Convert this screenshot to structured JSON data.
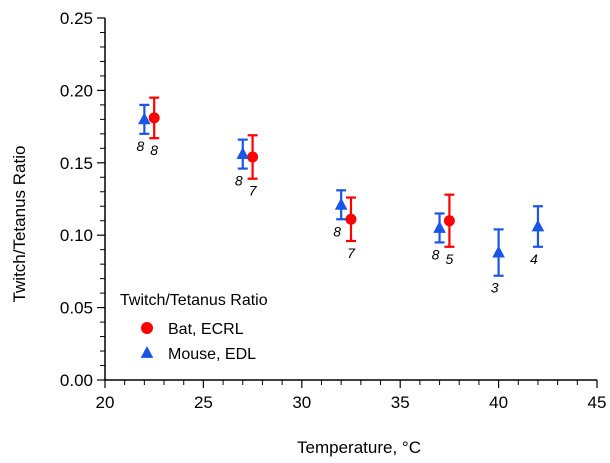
{
  "chart_data": {
    "type": "scatter",
    "xlabel": "Temperature, °C",
    "ylabel": "Twitch/Tetanus Ratio",
    "xlim": [
      20,
      45
    ],
    "ylim": [
      0,
      0.25
    ],
    "x_ticks": [
      "20",
      "25",
      "30",
      "35",
      "40",
      "45"
    ],
    "y_ticks": [
      "0.00",
      "0.05",
      "0.10",
      "0.15",
      "0.20",
      "0.25"
    ],
    "grid": false,
    "legend": {
      "title": "Twitch/Tetanus Ratio",
      "placement": "bottom-left"
    },
    "series": [
      {
        "name": "Bat, ECRL",
        "marker": "circle",
        "color": "#ff0000",
        "points": [
          {
            "x": 22.5,
            "y": 0.181,
            "err": 0.014,
            "n": "8"
          },
          {
            "x": 27.5,
            "y": 0.154,
            "err": 0.015,
            "n": "7"
          },
          {
            "x": 32.5,
            "y": 0.111,
            "err": 0.015,
            "n": "7"
          },
          {
            "x": 37.5,
            "y": 0.11,
            "err": 0.018,
            "n": "5"
          }
        ]
      },
      {
        "name": "Mouse, EDL",
        "marker": "triangle",
        "color": "#1a55e8",
        "points": [
          {
            "x": 22,
            "y": 0.18,
            "err": 0.01,
            "n": "8"
          },
          {
            "x": 27,
            "y": 0.156,
            "err": 0.01,
            "n": "8"
          },
          {
            "x": 32,
            "y": 0.121,
            "err": 0.01,
            "n": "8"
          },
          {
            "x": 37,
            "y": 0.105,
            "err": 0.01,
            "n": "8"
          },
          {
            "x": 40,
            "y": 0.088,
            "err": 0.016,
            "n": "3"
          },
          {
            "x": 42,
            "y": 0.106,
            "err": 0.014,
            "n": "4"
          }
        ]
      }
    ]
  }
}
